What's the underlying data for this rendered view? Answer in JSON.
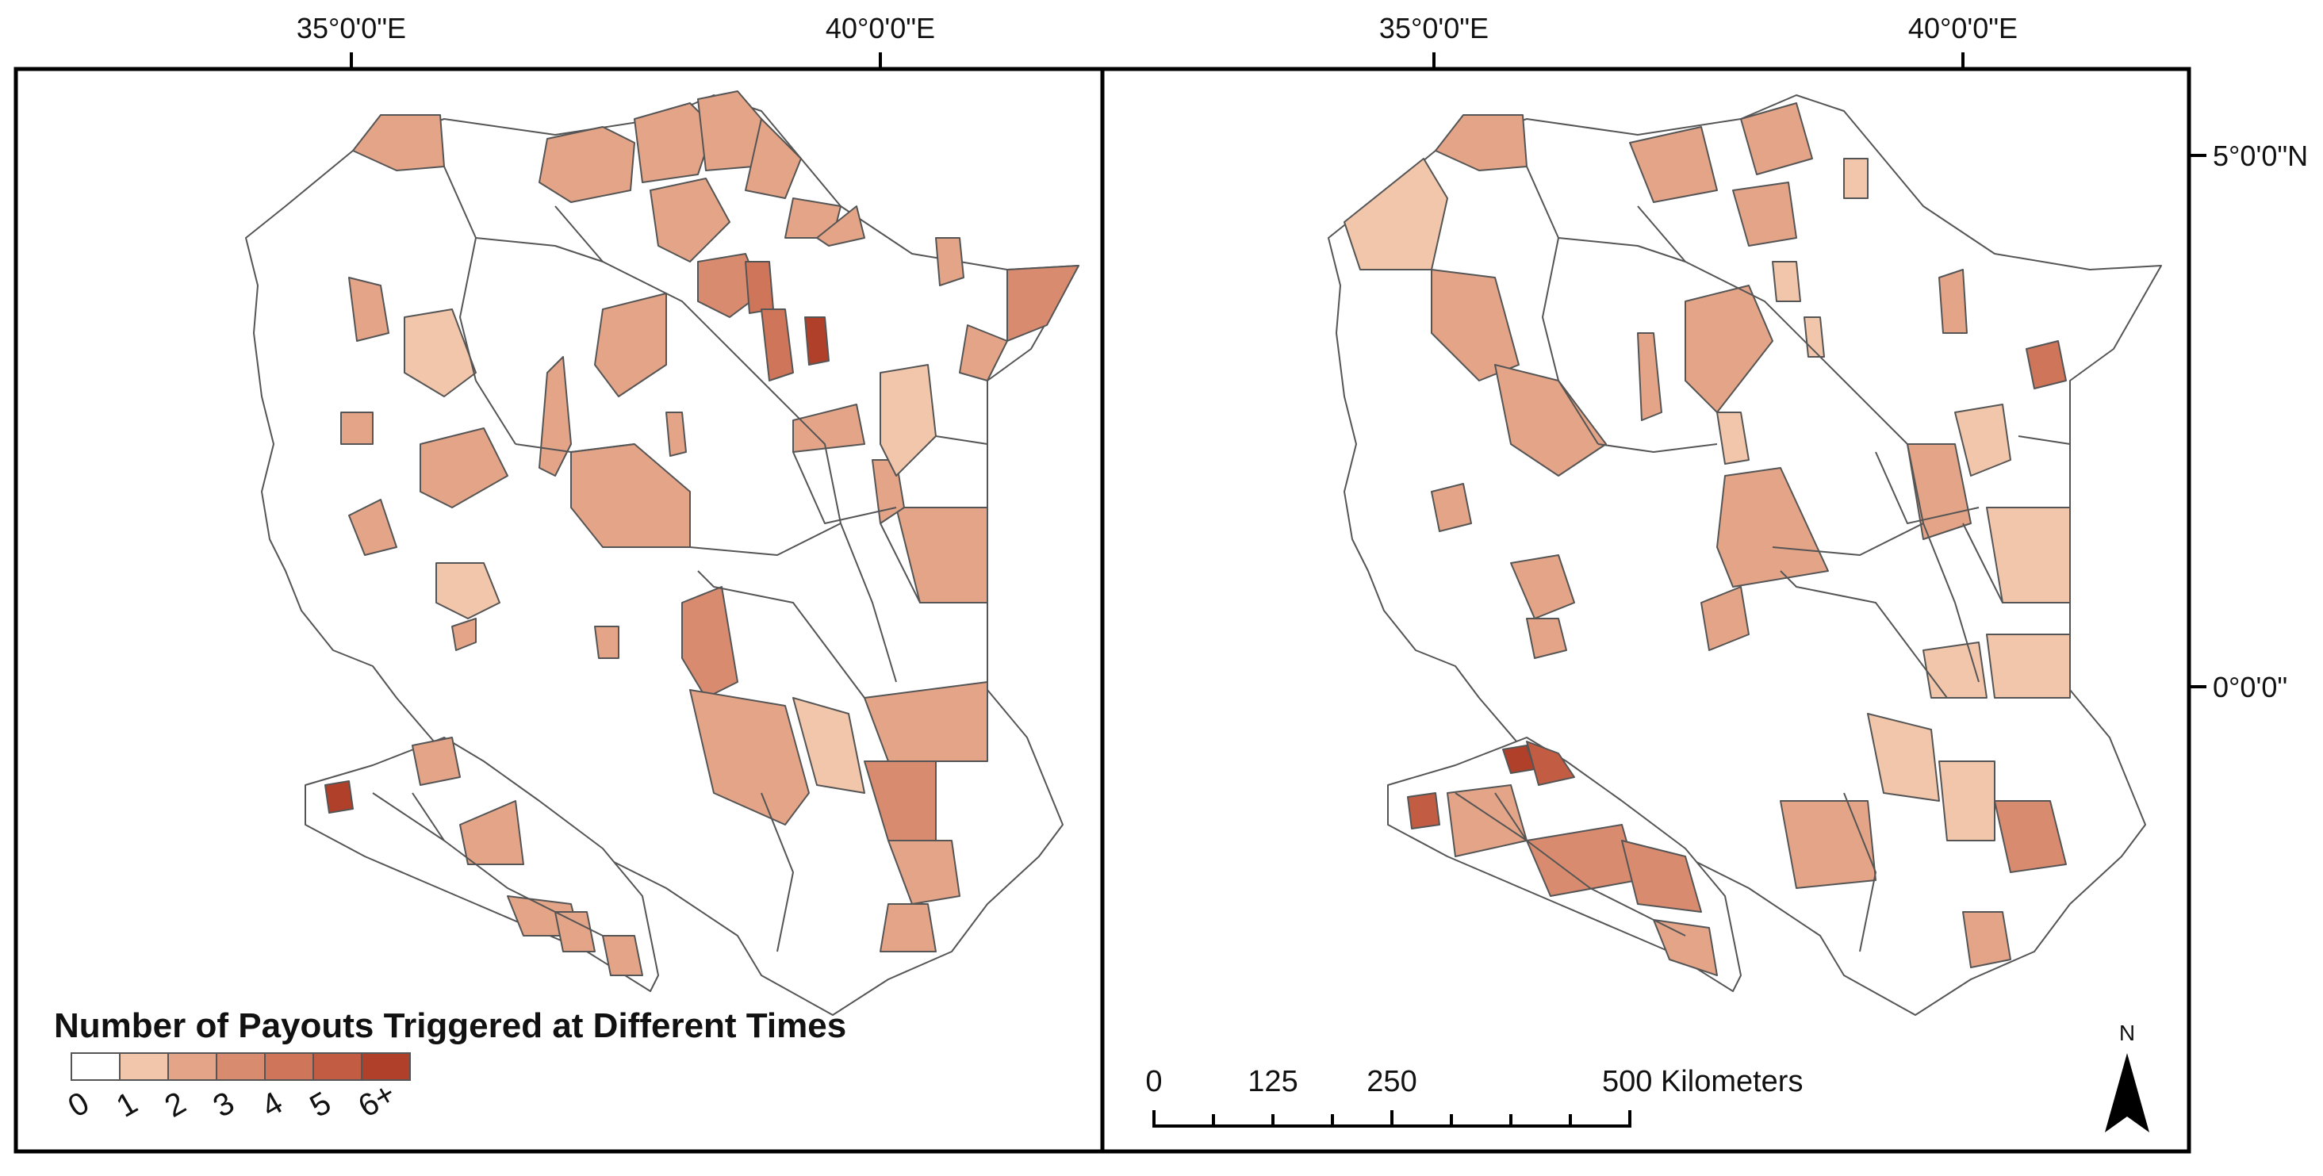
{
  "graticule": {
    "top_labels": [
      "35°0'0\"E",
      "40°0'0\"E",
      "35°0'0\"E",
      "40°0'0\"E"
    ],
    "right_labels": [
      "5°0'0\"N",
      "0°0'0\""
    ]
  },
  "legend": {
    "title": "Number of Payouts Triggered at Different Times",
    "classes": [
      {
        "label": "0",
        "color": "#ffffff"
      },
      {
        "label": "1",
        "color": "#f2c6ab"
      },
      {
        "label": "2",
        "color": "#e4a487"
      },
      {
        "label": "3",
        "color": "#d98b70"
      },
      {
        "label": "4",
        "color": "#cf7559"
      },
      {
        "label": "5",
        "color": "#c25d43"
      },
      {
        "label": "6+",
        "color": "#b0402a"
      }
    ]
  },
  "scale_bar": {
    "labels": [
      "0",
      "125",
      "250",
      "500 Kilometers"
    ]
  },
  "north_arrow": {
    "label": "N"
  },
  "colors": {
    "frame": "#000000",
    "boundary": "#555555"
  }
}
